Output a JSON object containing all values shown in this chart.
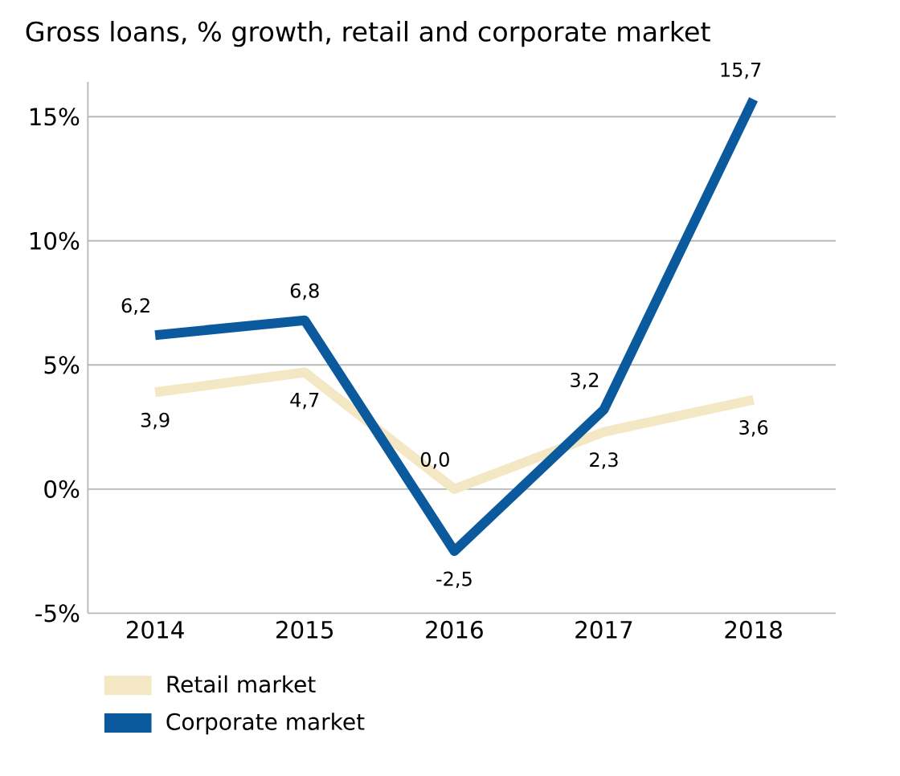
{
  "chart_data": {
    "type": "line",
    "title": "Gross loans, % growth, retail and corporate market",
    "categories": [
      "2014",
      "2015",
      "2016",
      "2017",
      "2018"
    ],
    "series": [
      {
        "name": "Retail market",
        "color": "#f4e7c3",
        "values": [
          3.9,
          4.7,
          0.0,
          2.3,
          3.6
        ],
        "value_labels": [
          "3,9",
          "4,7",
          "0,0",
          "2,3",
          "3,6"
        ]
      },
      {
        "name": "Corporate market",
        "color": "#0b5a9e",
        "values": [
          6.2,
          6.8,
          -2.5,
          3.2,
          15.7
        ],
        "value_labels": [
          "6,2",
          "6,8",
          "-2,5",
          "3,2",
          "15,7"
        ]
      }
    ],
    "yticks": [
      {
        "value": -5,
        "label": "-5%"
      },
      {
        "value": 0,
        "label": "0%"
      },
      {
        "value": 5,
        "label": "5%"
      },
      {
        "value": 10,
        "label": "10%"
      },
      {
        "value": 15,
        "label": "15%"
      }
    ],
    "ylim": [
      -5,
      16.4
    ],
    "grid": "y",
    "legend": "bottom",
    "marker": "none",
    "line_style": "solid"
  }
}
